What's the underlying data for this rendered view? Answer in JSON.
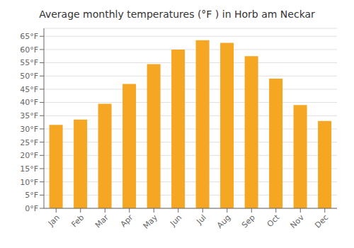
{
  "chart_data": {
    "type": "bar",
    "title": "Average monthly temperatures (°F ) in Horb am Neckar",
    "categories": [
      "Jan",
      "Feb",
      "Mar",
      "Apr",
      "May",
      "Jun",
      "Jul",
      "Aug",
      "Sep",
      "Oct",
      "Nov",
      "Dec"
    ],
    "values": [
      31.5,
      33.5,
      39.5,
      47.0,
      54.5,
      60.0,
      63.5,
      62.5,
      57.5,
      49.0,
      39.0,
      33.0
    ],
    "color": "#F5A623",
    "ylim": [
      0,
      68
    ],
    "yticks": [
      {
        "value": 0,
        "label": "0°F"
      },
      {
        "value": 5,
        "label": "5°F"
      },
      {
        "value": 10,
        "label": "10°F"
      },
      {
        "value": 15,
        "label": "15°F"
      },
      {
        "value": 20,
        "label": "20°F"
      },
      {
        "value": 25,
        "label": "25°F"
      },
      {
        "value": 30,
        "label": "30°F"
      },
      {
        "value": 35,
        "label": "35°F"
      },
      {
        "value": 40,
        "label": "40°F"
      },
      {
        "value": 45,
        "label": "45°F"
      },
      {
        "value": 50,
        "label": "50°F"
      },
      {
        "value": 55,
        "label": "55°F"
      },
      {
        "value": 60,
        "label": "60°F"
      },
      {
        "value": 65,
        "label": "65°F"
      }
    ],
    "grid": true
  }
}
